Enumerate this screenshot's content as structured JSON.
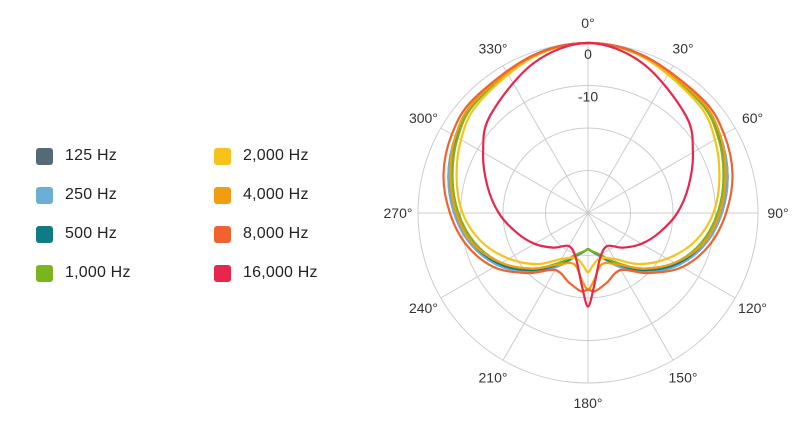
{
  "chart_data": {
    "type": "polar",
    "title": "",
    "r_ticks": [
      0,
      -10
    ],
    "r_range": [
      -40,
      0
    ],
    "angle_ticks": [
      "0°",
      "30°",
      "60°",
      "90°",
      "120°",
      "150°",
      "180°",
      "210°",
      "240°",
      "270°",
      "300°",
      "330°"
    ],
    "grid": true,
    "legend_position": "left",
    "series": [
      {
        "name": "125 Hz",
        "color": "#546a76",
        "angles": [
          0,
          20,
          45,
          60,
          75,
          90,
          105,
          120,
          135,
          150,
          165,
          175,
          180
        ],
        "values": [
          0,
          -0.8,
          -2.5,
          -4.0,
          -6.0,
          -8.5,
          -11.5,
          -15.5,
          -20.5,
          -25.5,
          -29.5,
          -31.0,
          -31.5
        ]
      },
      {
        "name": "250 Hz",
        "color": "#6baed6",
        "angles": [
          0,
          20,
          45,
          60,
          75,
          90,
          105,
          120,
          135,
          150,
          165,
          175,
          180
        ],
        "values": [
          0,
          -0.8,
          -2.5,
          -4.0,
          -6.0,
          -8.5,
          -11.5,
          -15.5,
          -20.5,
          -25.5,
          -29.5,
          -31.0,
          -31.5
        ]
      },
      {
        "name": "500 Hz",
        "color": "#0f7b84",
        "angles": [
          0,
          20,
          45,
          60,
          75,
          90,
          105,
          120,
          135,
          150,
          165,
          175,
          180
        ],
        "values": [
          0,
          -0.9,
          -2.7,
          -4.3,
          -6.5,
          -9.0,
          -12.0,
          -16.0,
          -21.0,
          -26.0,
          -29.8,
          -31.0,
          -31.5
        ]
      },
      {
        "name": "1,000 Hz",
        "color": "#7ab51d",
        "angles": [
          0,
          20,
          45,
          60,
          75,
          90,
          105,
          120,
          135,
          150,
          165,
          175,
          180
        ],
        "values": [
          0,
          -1.0,
          -2.9,
          -4.6,
          -7.0,
          -9.5,
          -12.5,
          -16.5,
          -21.5,
          -26.5,
          -30.0,
          -31.0,
          -31.5
        ]
      },
      {
        "name": "2,000 Hz",
        "color": "#f6c31b",
        "angles": [
          0,
          20,
          45,
          60,
          75,
          90,
          105,
          120,
          135,
          150,
          165,
          175,
          180
        ],
        "values": [
          0,
          -1.2,
          -3.5,
          -5.5,
          -8.0,
          -10.5,
          -14.0,
          -18.5,
          -23.0,
          -27.5,
          -29.0,
          -27.5,
          -26.0
        ]
      },
      {
        "name": "4,000 Hz",
        "color": "#f39c12",
        "angles": [
          0,
          20,
          45,
          60,
          75,
          90,
          105,
          120,
          135,
          150,
          165,
          175,
          180
        ],
        "values": [
          0,
          -1.0,
          -2.5,
          -4.0,
          -6.5,
          -9.0,
          -12.0,
          -16.5,
          -21.5,
          -26.0,
          -27.5,
          -24.0,
          -22.0
        ]
      },
      {
        "name": "8,000 Hz",
        "color": "#f0622f",
        "angles": [
          0,
          20,
          45,
          60,
          75,
          90,
          105,
          120,
          135,
          150,
          165,
          175,
          180
        ],
        "values": [
          0,
          -0.8,
          -2.0,
          -3.0,
          -4.8,
          -7.5,
          -10.5,
          -14.5,
          -20.0,
          -24.5,
          -23.0,
          -21.5,
          -22.0
        ]
      },
      {
        "name": "16,000 Hz",
        "color": "#e8264c",
        "angles": [
          0,
          20,
          45,
          60,
          75,
          90,
          105,
          120,
          135,
          150,
          165,
          175,
          180
        ],
        "values": [
          0,
          -2.5,
          -7.5,
          -11.5,
          -15.5,
          -19.0,
          -22.5,
          -25.5,
          -28.5,
          -31.0,
          -29.0,
          -23.0,
          -18.0
        ]
      }
    ]
  }
}
